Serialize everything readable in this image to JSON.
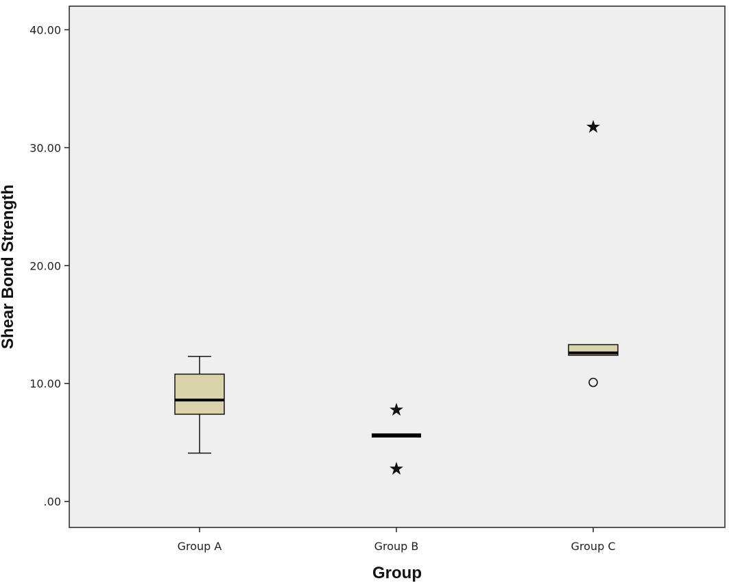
{
  "chart_data": {
    "type": "boxplot",
    "xlabel": "Group",
    "ylabel": "Shear Bond Strength",
    "ylim": [
      -2.2,
      42.0
    ],
    "yticks": [
      0,
      10,
      20,
      30,
      40
    ],
    "ytick_labels": [
      ".00",
      "10.00",
      "20.00",
      "30.00",
      "40.00"
    ],
    "categories": [
      "Group A",
      "Group B",
      "Group C"
    ],
    "boxes": [
      {
        "category": "Group A",
        "whisker_low": 4.1,
        "q1": 7.4,
        "median": 8.6,
        "q3": 10.8,
        "whisker_high": 12.3,
        "outliers": [],
        "extremes": []
      },
      {
        "category": "Group B",
        "whisker_low": 5.6,
        "q1": 5.6,
        "median": 5.6,
        "q3": 5.6,
        "whisker_high": 5.6,
        "outliers": [],
        "extremes": [
          2.8,
          7.8
        ]
      },
      {
        "category": "Group C",
        "whisker_low": 12.4,
        "q1": 12.4,
        "median": 12.6,
        "q3": 13.3,
        "whisker_high": 13.3,
        "outliers": [
          10.1
        ],
        "extremes": [
          31.8
        ]
      }
    ],
    "grid": false,
    "colors": {
      "plot_background": "#efefef",
      "box_fill": "#d8d3a8",
      "box_stroke": "#111111",
      "median": "#000000"
    }
  }
}
